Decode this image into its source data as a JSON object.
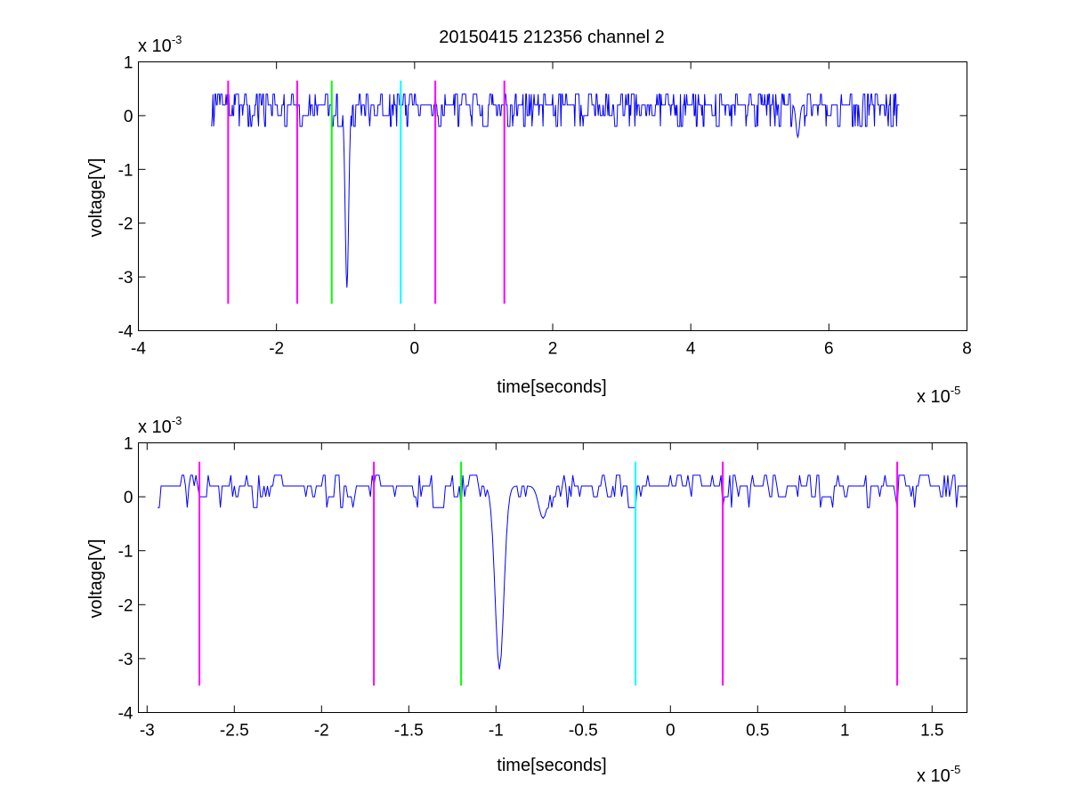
{
  "chart_data": [
    {
      "type": "line",
      "title": "20150415 212356 channel 2",
      "xlabel": "time[seconds]",
      "ylabel": "voltage[V]",
      "x_multiplier": {
        "base": "x 10",
        "exp": "-5"
      },
      "y_multiplier": {
        "base": "x 10",
        "exp": "-3"
      },
      "xlim": [
        -4e-05,
        8e-05
      ],
      "ylim": [
        -0.004,
        0.001
      ],
      "xticks": [
        -4e-05,
        -2e-05,
        0,
        2e-05,
        4e-05,
        6e-05,
        8e-05
      ],
      "xtick_labels": [
        "-4",
        "-2",
        "0",
        "2",
        "4",
        "6",
        "8"
      ],
      "yticks": [
        0.001,
        0,
        -0.001,
        -0.002,
        -0.003,
        -0.004
      ],
      "ytick_labels": [
        "1",
        "0",
        "-1",
        "-2",
        "-3",
        "-4"
      ],
      "grid": false,
      "series": [
        {
          "color": "#0000ff",
          "x_range": [
            -2.94e-05,
            7.02e-05
          ],
          "baseline": 0.0002,
          "noise_levels": [
            0,
            0.0002,
            0.0004
          ],
          "pulses": [
            {
              "x": -9.8e-06,
              "y": -0.0032
            },
            {
              "x": 5.55e-05,
              "y": -0.0004
            }
          ]
        }
      ],
      "markers": [
        {
          "x": -2.7e-05,
          "color": "#ff00ff",
          "y_range": [
            -0.0035,
            0.00065
          ]
        },
        {
          "x": -1.7e-05,
          "color": "#ff00ff",
          "y_range": [
            -0.0035,
            0.00065
          ]
        },
        {
          "x": -1.2e-05,
          "color": "#00ff00",
          "y_range": [
            -0.0035,
            0.00065
          ]
        },
        {
          "x": -2e-06,
          "color": "#00ffff",
          "y_range": [
            -0.0035,
            0.00065
          ]
        },
        {
          "x": 3e-06,
          "color": "#ff00ff",
          "y_range": [
            -0.0035,
            0.00065
          ]
        },
        {
          "x": 1.3e-05,
          "color": "#ff00ff",
          "y_range": [
            -0.0035,
            0.00065
          ]
        }
      ]
    },
    {
      "type": "line",
      "title": "",
      "xlabel": "time[seconds]",
      "ylabel": "voltage[V]",
      "x_multiplier": {
        "base": "x 10",
        "exp": "-5"
      },
      "y_multiplier": {
        "base": "x 10",
        "exp": "-3"
      },
      "xlim": [
        -3.05e-05,
        1.7e-05
      ],
      "ylim": [
        -0.004,
        0.001
      ],
      "xticks": [
        -3e-05,
        -2.5e-05,
        -2e-05,
        -1.5e-05,
        -1e-05,
        -5e-06,
        0,
        5e-06,
        1e-05,
        1.5e-05
      ],
      "xtick_labels": [
        "-3",
        "-2.5",
        "-2",
        "-1.5",
        "-1",
        "-0.5",
        "0",
        "0.5",
        "1",
        "1.5"
      ],
      "yticks": [
        0.001,
        0,
        -0.001,
        -0.002,
        -0.003,
        -0.004
      ],
      "ytick_labels": [
        "1",
        "0",
        "-1",
        "-2",
        "-3",
        "-4"
      ],
      "grid": false,
      "series": [
        {
          "color": "#0000ff",
          "x_range": [
            -2.94e-05,
            1.7e-05
          ],
          "baseline": 0.0002,
          "noise_levels": [
            0,
            0.0002,
            0.0004
          ],
          "pulses": [
            {
              "x": -9.8e-06,
              "y": -0.0032
            },
            {
              "x": -7.3e-06,
              "y": -0.0004
            }
          ]
        }
      ],
      "markers": [
        {
          "x": -2.7e-05,
          "color": "#ff00ff",
          "y_range": [
            -0.0035,
            0.00065
          ]
        },
        {
          "x": -1.7e-05,
          "color": "#ff00ff",
          "y_range": [
            -0.0035,
            0.00065
          ]
        },
        {
          "x": -1.2e-05,
          "color": "#00ff00",
          "y_range": [
            -0.0035,
            0.00065
          ]
        },
        {
          "x": -2e-06,
          "color": "#00ffff",
          "y_range": [
            -0.0035,
            0.00065
          ]
        },
        {
          "x": 3e-06,
          "color": "#ff00ff",
          "y_range": [
            -0.0035,
            0.00065
          ]
        },
        {
          "x": 1.3e-05,
          "color": "#ff00ff",
          "y_range": [
            -0.0035,
            0.00065
          ]
        }
      ]
    }
  ]
}
